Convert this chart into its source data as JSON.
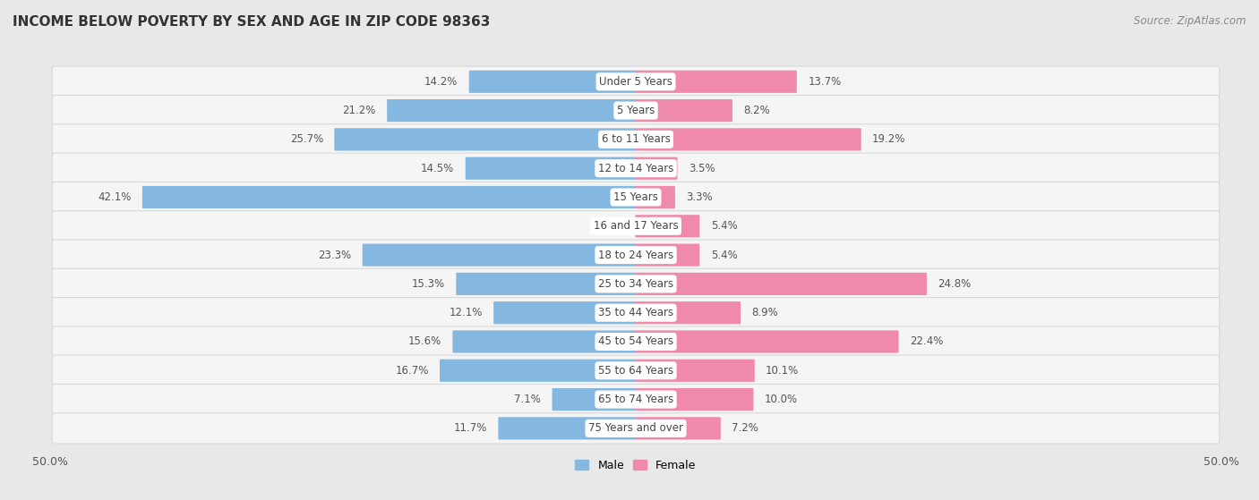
{
  "title": "INCOME BELOW POVERTY BY SEX AND AGE IN ZIP CODE 98363",
  "source": "Source: ZipAtlas.com",
  "categories": [
    "Under 5 Years",
    "5 Years",
    "6 to 11 Years",
    "12 to 14 Years",
    "15 Years",
    "16 and 17 Years",
    "18 to 24 Years",
    "25 to 34 Years",
    "35 to 44 Years",
    "45 to 54 Years",
    "55 to 64 Years",
    "65 to 74 Years",
    "75 Years and over"
  ],
  "male_values": [
    14.2,
    21.2,
    25.7,
    14.5,
    42.1,
    0.0,
    23.3,
    15.3,
    12.1,
    15.6,
    16.7,
    7.1,
    11.7
  ],
  "female_values": [
    13.7,
    8.2,
    19.2,
    3.5,
    3.3,
    5.4,
    5.4,
    24.8,
    8.9,
    22.4,
    10.1,
    10.0,
    7.2
  ],
  "male_color": "#85b8e0",
  "female_color": "#f08aaa",
  "male_label": "Male",
  "female_label": "Female",
  "axis_max": 50.0,
  "background_color": "#e8e8e8",
  "row_bg_color": "#f5f5f5",
  "row_bg_outline": "#d8d8d8",
  "title_fontsize": 11,
  "source_fontsize": 8.5,
  "label_fontsize": 8.5,
  "value_fontsize": 8.5,
  "tick_fontsize": 9
}
